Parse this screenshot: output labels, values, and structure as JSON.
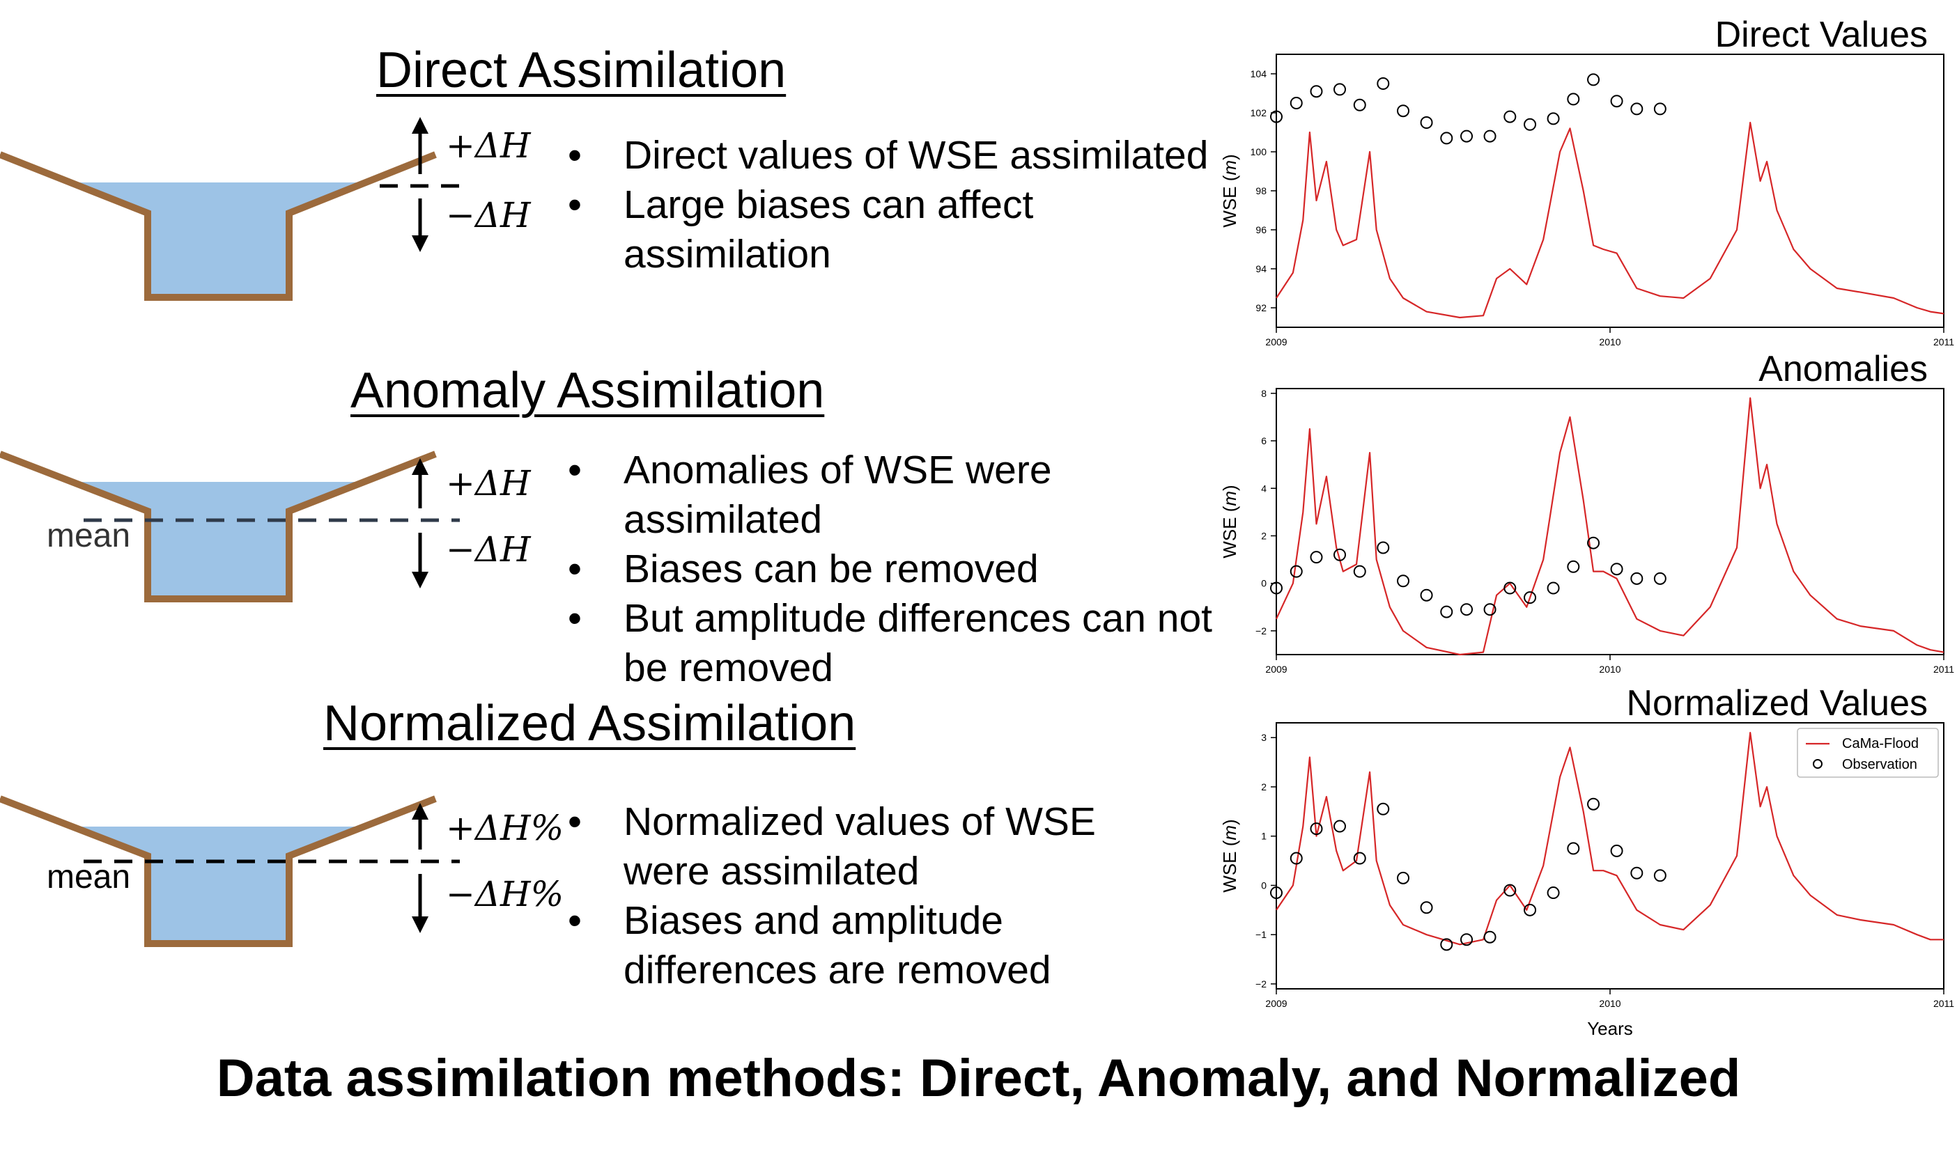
{
  "sections": [
    {
      "heading": "Direct Assimilation",
      "plus_label": "+ΔH",
      "minus_label": "−ΔH",
      "mean_label": "",
      "bullets": [
        "Direct values of WSE assimilated",
        "Large biases can affect assimilation"
      ]
    },
    {
      "heading": "Anomaly Assimilation",
      "plus_label": "+ΔH",
      "minus_label": "−ΔH",
      "mean_label": "mean",
      "bullets": [
        "Anomalies of WSE were assimilated",
        "Biases can be removed",
        "But amplitude differences can not be removed"
      ]
    },
    {
      "heading": "Normalized Assimilation",
      "plus_label": "+ΔH%",
      "minus_label": "−ΔH%",
      "mean_label": "mean",
      "bullets": [
        "Normalized values of WSE were assimilated",
        "Biases and amplitude differences are removed"
      ]
    }
  ],
  "colors": {
    "water": "#9dc3e6",
    "channel": "#9c6a3c",
    "model_line": "#d62728",
    "dashes_anomaly": "#2f3a4a"
  },
  "caption": "Data assimilation methods: Direct, Anomaly, and Normalized",
  "chart_data": [
    {
      "type": "line",
      "title": "Direct Values",
      "ylabel": "WSE (m)",
      "xlabel": "",
      "xlim": [
        2009,
        2011
      ],
      "ylim": [
        91,
        105
      ],
      "yticks": [
        "92",
        "94",
        "96",
        "98",
        "100",
        "102",
        "104"
      ],
      "xticks": [
        "2009",
        "2010",
        "2011"
      ],
      "series": [
        {
          "name": "CaMa-Flood",
          "kind": "line",
          "x": [
            2009.0,
            2009.05,
            2009.08,
            2009.1,
            2009.12,
            2009.15,
            2009.18,
            2009.2,
            2009.24,
            2009.28,
            2009.3,
            2009.34,
            2009.38,
            2009.45,
            2009.55,
            2009.62,
            2009.66,
            2009.7,
            2009.75,
            2009.8,
            2009.85,
            2009.88,
            2009.92,
            2009.95,
            2009.98,
            2010.02,
            2010.08,
            2010.15,
            2010.22,
            2010.3,
            2010.38,
            2010.42,
            2010.45,
            2010.47,
            2010.5,
            2010.55,
            2010.6,
            2010.68,
            2010.75,
            2010.85,
            2010.92,
            2010.96,
            2011.0
          ],
          "values": [
            92.5,
            93.8,
            96.5,
            101.0,
            97.5,
            99.5,
            96.0,
            95.2,
            95.5,
            100.0,
            96.0,
            93.5,
            92.5,
            91.8,
            91.5,
            91.6,
            93.5,
            94.0,
            93.2,
            95.5,
            100.0,
            101.2,
            98.0,
            95.2,
            95.0,
            94.8,
            93.0,
            92.6,
            92.5,
            93.5,
            96.0,
            101.5,
            98.5,
            99.5,
            97.0,
            95.0,
            94.0,
            93.0,
            92.8,
            92.5,
            92.0,
            91.8,
            91.7
          ]
        },
        {
          "name": "Observation",
          "kind": "points",
          "x": [
            2009.0,
            2009.06,
            2009.12,
            2009.19,
            2009.25,
            2009.32,
            2009.38,
            2009.45,
            2009.51,
            2009.57,
            2009.64,
            2009.7,
            2009.76,
            2009.83,
            2009.89,
            2009.95,
            2010.02,
            2010.08,
            2010.15
          ],
          "values": [
            101.8,
            102.5,
            103.1,
            103.2,
            102.4,
            103.5,
            102.1,
            101.5,
            100.7,
            100.8,
            100.8,
            101.8,
            101.4,
            101.7,
            102.7,
            103.7,
            102.6,
            102.2,
            102.2
          ]
        }
      ]
    },
    {
      "type": "line",
      "title": "Anomalies",
      "ylabel": "WSE (m)",
      "xlabel": "",
      "xlim": [
        2009,
        2011
      ],
      "ylim": [
        -3,
        8.2
      ],
      "yticks": [
        "−2",
        "0",
        "2",
        "4",
        "6",
        "8"
      ],
      "xticks": [
        "2009",
        "2010",
        "2011"
      ],
      "series": [
        {
          "name": "CaMa-Flood",
          "kind": "line",
          "x": [
            2009.0,
            2009.05,
            2009.08,
            2009.1,
            2009.12,
            2009.15,
            2009.18,
            2009.2,
            2009.24,
            2009.28,
            2009.3,
            2009.34,
            2009.38,
            2009.45,
            2009.55,
            2009.62,
            2009.66,
            2009.7,
            2009.75,
            2009.8,
            2009.85,
            2009.88,
            2009.92,
            2009.95,
            2009.98,
            2010.02,
            2010.08,
            2010.15,
            2010.22,
            2010.3,
            2010.38,
            2010.42,
            2010.45,
            2010.47,
            2010.5,
            2010.55,
            2010.6,
            2010.68,
            2010.75,
            2010.85,
            2010.92,
            2010.96,
            2011.0
          ],
          "values": [
            -1.5,
            0.0,
            3.0,
            6.5,
            2.5,
            4.5,
            1.5,
            0.5,
            0.8,
            5.5,
            1.0,
            -1.0,
            -2.0,
            -2.7,
            -3.0,
            -2.9,
            -0.5,
            0.0,
            -1.0,
            1.0,
            5.5,
            7.0,
            3.5,
            0.5,
            0.5,
            0.2,
            -1.5,
            -2.0,
            -2.2,
            -1.0,
            1.5,
            7.8,
            4.0,
            5.0,
            2.5,
            0.5,
            -0.5,
            -1.5,
            -1.8,
            -2.0,
            -2.6,
            -2.8,
            -2.9
          ]
        },
        {
          "name": "Observation",
          "kind": "points",
          "x": [
            2009.0,
            2009.06,
            2009.12,
            2009.19,
            2009.25,
            2009.32,
            2009.38,
            2009.45,
            2009.51,
            2009.57,
            2009.64,
            2009.7,
            2009.76,
            2009.83,
            2009.89,
            2009.95,
            2010.02,
            2010.08,
            2010.15
          ],
          "values": [
            -0.2,
            0.5,
            1.1,
            1.2,
            0.5,
            1.5,
            0.1,
            -0.5,
            -1.2,
            -1.1,
            -1.1,
            -0.2,
            -0.6,
            -0.2,
            0.7,
            1.7,
            0.6,
            0.2,
            0.2
          ]
        }
      ]
    },
    {
      "type": "line",
      "title": "Normalized Values",
      "ylabel": "WSE (m)",
      "xlabel": "Years",
      "xlim": [
        2009,
        2011
      ],
      "ylim": [
        -2.1,
        3.3
      ],
      "yticks": [
        "−2",
        "−1",
        "0",
        "1",
        "2",
        "3"
      ],
      "xticks": [
        "2009",
        "2010",
        "2011"
      ],
      "legend": [
        "CaMa-Flood",
        "Observation"
      ],
      "series": [
        {
          "name": "CaMa-Flood",
          "kind": "line",
          "x": [
            2009.0,
            2009.05,
            2009.08,
            2009.1,
            2009.12,
            2009.15,
            2009.18,
            2009.2,
            2009.24,
            2009.28,
            2009.3,
            2009.34,
            2009.38,
            2009.45,
            2009.55,
            2009.62,
            2009.66,
            2009.7,
            2009.75,
            2009.8,
            2009.85,
            2009.88,
            2009.92,
            2009.95,
            2009.98,
            2010.02,
            2010.08,
            2010.15,
            2010.22,
            2010.3,
            2010.38,
            2010.42,
            2010.45,
            2010.47,
            2010.5,
            2010.55,
            2010.6,
            2010.68,
            2010.75,
            2010.85,
            2010.92,
            2010.96,
            2011.0
          ],
          "values": [
            -0.5,
            0.0,
            1.2,
            2.6,
            1.0,
            1.8,
            0.7,
            0.3,
            0.5,
            2.3,
            0.5,
            -0.4,
            -0.8,
            -1.0,
            -1.2,
            -1.1,
            -0.3,
            0.0,
            -0.5,
            0.4,
            2.2,
            2.8,
            1.5,
            0.3,
            0.3,
            0.2,
            -0.5,
            -0.8,
            -0.9,
            -0.4,
            0.6,
            3.1,
            1.6,
            2.0,
            1.0,
            0.2,
            -0.2,
            -0.6,
            -0.7,
            -0.8,
            -1.0,
            -1.1,
            -1.1
          ]
        },
        {
          "name": "Observation",
          "kind": "points",
          "x": [
            2009.0,
            2009.06,
            2009.12,
            2009.19,
            2009.25,
            2009.32,
            2009.38,
            2009.45,
            2009.51,
            2009.57,
            2009.64,
            2009.7,
            2009.76,
            2009.83,
            2009.89,
            2009.95,
            2010.02,
            2010.08,
            2010.15
          ],
          "values": [
            -0.15,
            0.55,
            1.15,
            1.2,
            0.55,
            1.55,
            0.15,
            -0.45,
            -1.2,
            -1.1,
            -1.05,
            -0.1,
            -0.5,
            -0.15,
            0.75,
            1.65,
            0.7,
            0.25,
            0.2
          ]
        }
      ]
    }
  ]
}
